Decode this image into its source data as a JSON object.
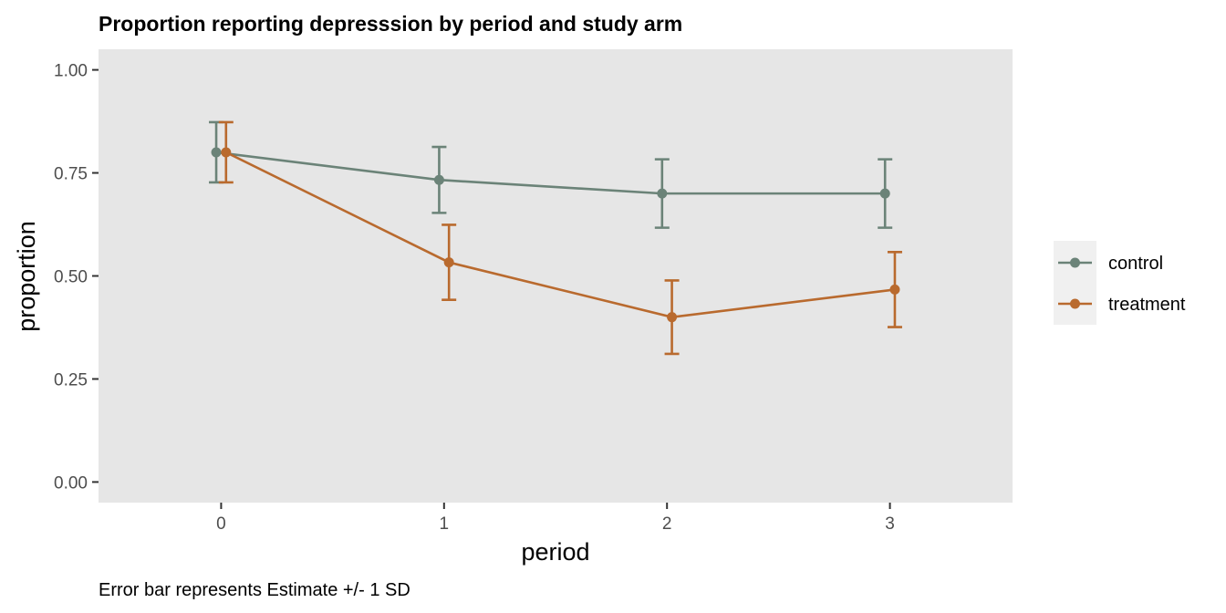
{
  "chart_data": {
    "type": "line",
    "title": "Proportion reporting depresssion by period and study arm",
    "xlabel": "period",
    "ylabel": "proportion",
    "caption": "Error bar represents Estimate +/- 1 SD",
    "x": [
      0,
      1,
      2,
      3
    ],
    "x_tick_labels": [
      "0",
      "1",
      "2",
      "3"
    ],
    "xlim": [
      -0.55,
      3.55
    ],
    "ylim": [
      -0.05,
      1.05
    ],
    "y_ticks": [
      0,
      0.25,
      0.5,
      0.75,
      1
    ],
    "y_tick_labels": [
      "0.00",
      "0.25",
      "0.50",
      "0.75",
      "1.00"
    ],
    "grid": false,
    "panel_background": "#e6e6e6",
    "legend_position": "right",
    "series": [
      {
        "name": "control",
        "color": "#6b8378",
        "values": [
          0.8,
          0.733,
          0.7,
          0.7
        ],
        "error_low": [
          0.727,
          0.653,
          0.617,
          0.617
        ],
        "error_high": [
          0.873,
          0.813,
          0.783,
          0.783
        ]
      },
      {
        "name": "treatment",
        "color": "#b96a2e",
        "values": [
          0.8,
          0.533,
          0.4,
          0.467
        ],
        "error_low": [
          0.727,
          0.442,
          0.311,
          0.376
        ],
        "error_high": [
          0.873,
          0.624,
          0.489,
          0.558
        ]
      }
    ]
  }
}
